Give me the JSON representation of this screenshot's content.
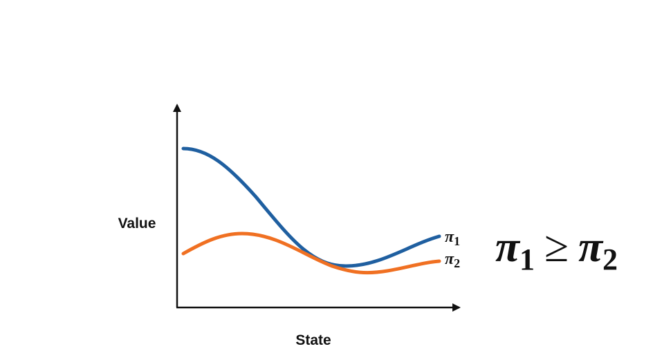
{
  "axes": {
    "y_label": "Value",
    "x_label": "State"
  },
  "curves": [
    {
      "label": {
        "base": "π",
        "sub": "1"
      }
    },
    {
      "label": {
        "base": "π",
        "sub": "2"
      }
    }
  ],
  "formula": {
    "left": {
      "base": "π",
      "sub": "1"
    },
    "relation": "≥",
    "right": {
      "base": "π",
      "sub": "2"
    }
  }
}
